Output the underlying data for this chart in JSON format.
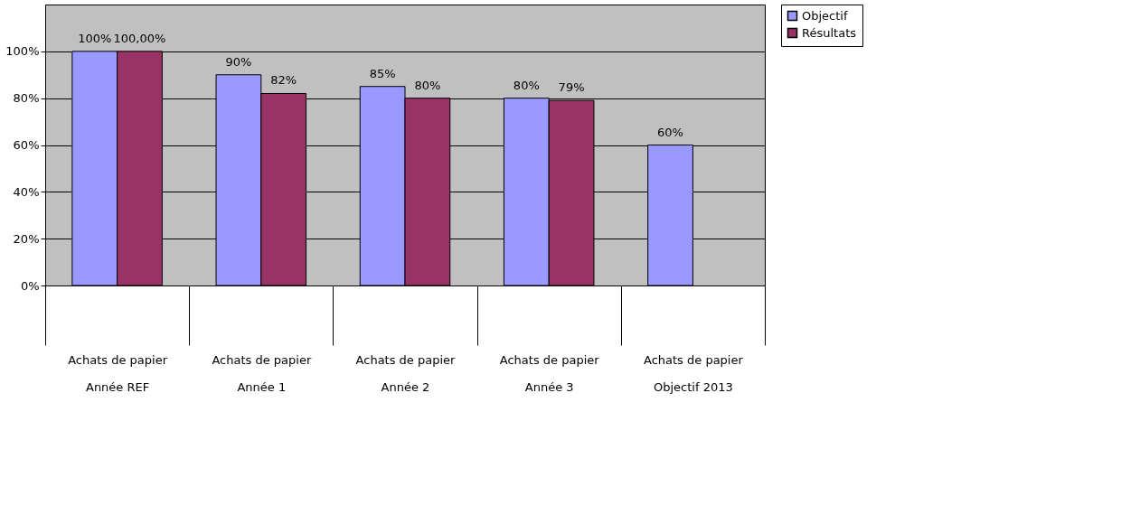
{
  "chart_data": {
    "type": "bar",
    "categories": [
      "Achats de papier\nAnnée REF",
      "Achats de papier\nAnnée 1",
      "Achats de papier\nAnnée 2",
      "Achats de papier\nAnnée 3",
      "Achats de papier\nObjectif 2013"
    ],
    "series": [
      {
        "name": "Objectif",
        "color": "#9999ff",
        "values": [
          100,
          90,
          85,
          80,
          60
        ],
        "value_labels": [
          "100%",
          "90%",
          "85%",
          "80%",
          "60%"
        ]
      },
      {
        "name": "Résultats",
        "color": "#993366",
        "values": [
          100,
          82,
          80,
          79,
          null
        ],
        "value_labels": [
          "100,00%",
          "82%",
          "80%",
          "79%",
          null
        ]
      }
    ],
    "ylim": [
      0,
      120
    ],
    "yticks": [
      {
        "value": 0,
        "label": "0%"
      },
      {
        "value": 20,
        "label": "20%"
      },
      {
        "value": 40,
        "label": "40%"
      },
      {
        "value": 60,
        "label": "60%"
      },
      {
        "value": 80,
        "label": "80%"
      },
      {
        "value": 100,
        "label": "100%"
      }
    ],
    "grid": "y",
    "legend": "right"
  }
}
